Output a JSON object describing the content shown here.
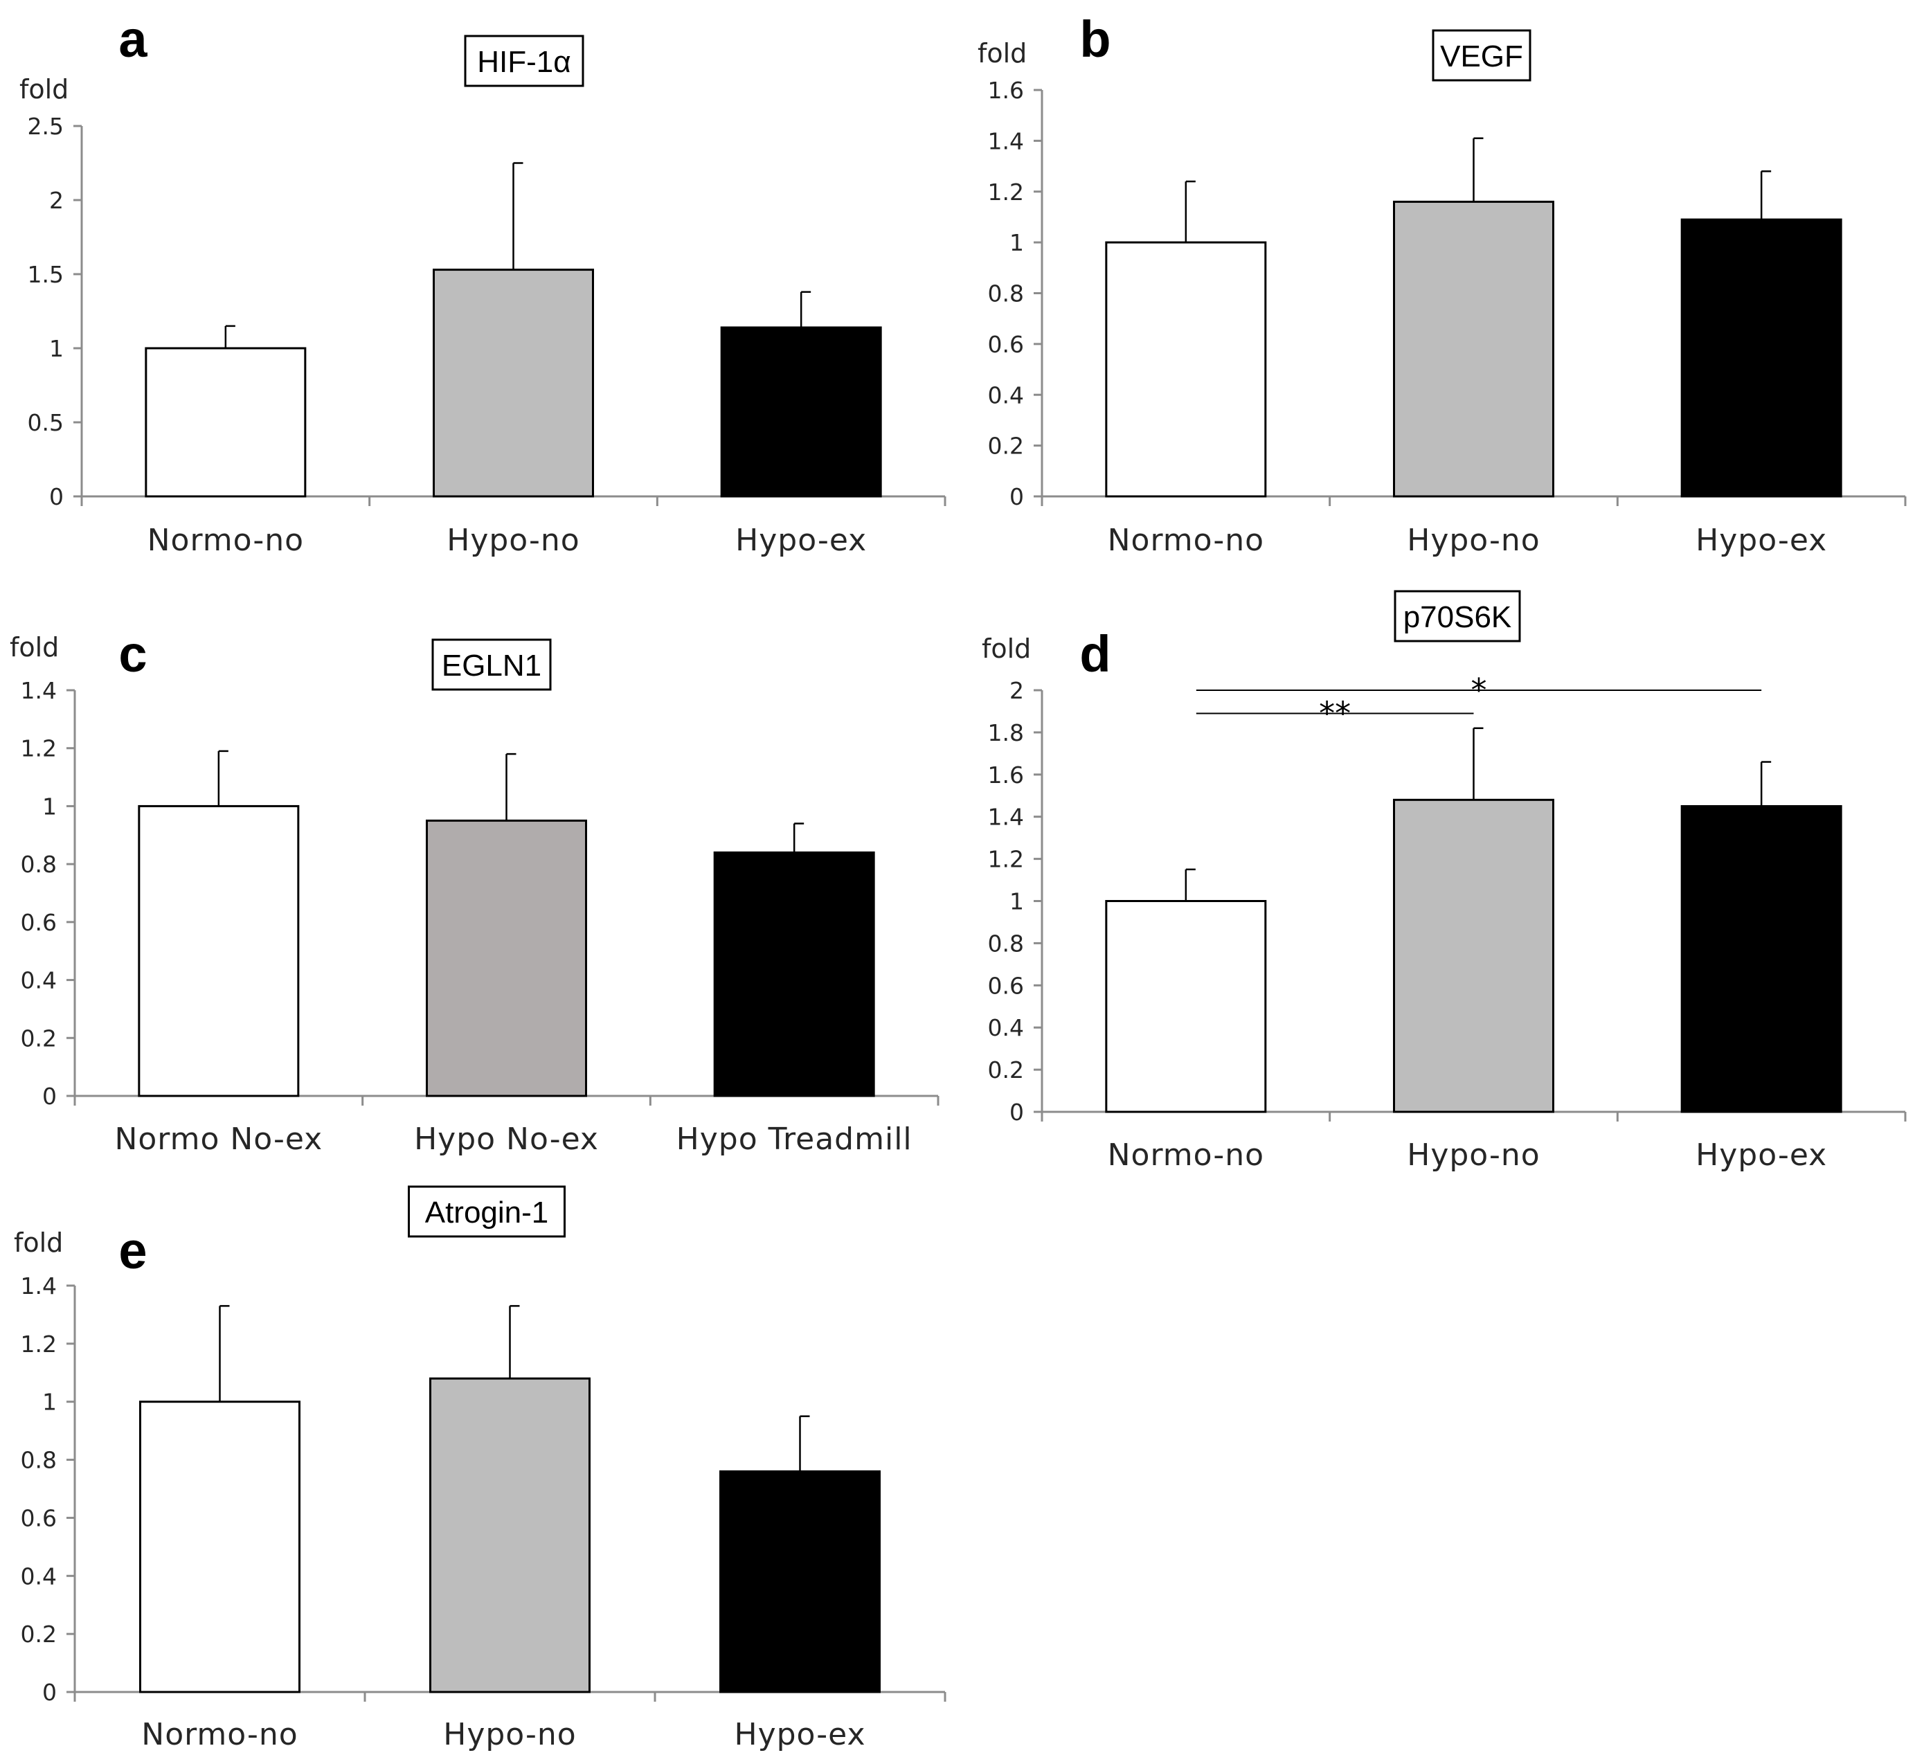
{
  "figure": {
    "panels": [
      {
        "letter": "a",
        "title": "HIF-1α"
      },
      {
        "letter": "b",
        "title": "VEGF"
      },
      {
        "letter": "c",
        "title": "EGLN1"
      },
      {
        "letter": "d",
        "title": "p70S6K"
      },
      {
        "letter": "e",
        "title": "Atrogin-1"
      }
    ]
  },
  "colors": {
    "normo": "#ffffff",
    "hypo_no": "#bdbdbd",
    "hypo_no_c": "#b0acac",
    "hypo_ex": "#000000",
    "axis": "#8c8c8c"
  },
  "chart_data": [
    {
      "type": "bar",
      "panel": "a",
      "title": "HIF-1α",
      "ylabel": "fold",
      "ylim": [
        0,
        2.5
      ],
      "yticks": [
        "0",
        "0.5",
        "1",
        "1.5",
        "2",
        "2.5"
      ],
      "categories": [
        "Normo-no",
        "Hypo-no",
        "Hypo-ex"
      ],
      "values": [
        1.0,
        1.53,
        1.14
      ],
      "errors": [
        0.15,
        0.72,
        0.24
      ],
      "significance": []
    },
    {
      "type": "bar",
      "panel": "b",
      "title": "VEGF",
      "ylabel": "fold",
      "ylim": [
        0,
        1.6
      ],
      "yticks": [
        "0",
        "0.2",
        "0.4",
        "0.6",
        "0.8",
        "1",
        "1.2",
        "1.4",
        "1.6"
      ],
      "categories": [
        "Normo-no",
        "Hypo-no",
        "Hypo-ex"
      ],
      "values": [
        1.0,
        1.16,
        1.09
      ],
      "errors": [
        0.24,
        0.25,
        0.19
      ],
      "significance": []
    },
    {
      "type": "bar",
      "panel": "c",
      "title": "EGLN1",
      "ylabel": "fold",
      "ylim": [
        0,
        1.4
      ],
      "yticks": [
        "0",
        "0.2",
        "0.4",
        "0.6",
        "0.8",
        "1",
        "1.2",
        "1.4"
      ],
      "categories": [
        "Normo No-ex",
        "Hypo No-ex",
        "Hypo Treadmill"
      ],
      "values": [
        1.0,
        0.95,
        0.84
      ],
      "errors": [
        0.19,
        0.23,
        0.1
      ],
      "significance": []
    },
    {
      "type": "bar",
      "panel": "d",
      "title": "p70S6K",
      "ylabel": "fold",
      "ylim": [
        0,
        2
      ],
      "yticks": [
        "0",
        "0.2",
        "0.4",
        "0.6",
        "0.8",
        "1",
        "1.2",
        "1.4",
        "1.6",
        "1.8",
        "2"
      ],
      "categories": [
        "Normo-no",
        "Hypo-no",
        "Hypo-ex"
      ],
      "values": [
        1.0,
        1.48,
        1.45
      ],
      "errors": [
        0.15,
        0.34,
        0.21
      ],
      "significance": [
        {
          "from": 0,
          "to": 1,
          "label": "**",
          "level": 1.89
        },
        {
          "from": 0,
          "to": 2,
          "label": "*",
          "level": 2.0
        }
      ]
    },
    {
      "type": "bar",
      "panel": "e",
      "title": "Atrogin-1",
      "ylabel": "fold",
      "ylim": [
        0,
        1.4
      ],
      "yticks": [
        "0",
        "0.2",
        "0.4",
        "0.6",
        "0.8",
        "1",
        "1.2",
        "1.4"
      ],
      "categories": [
        "Normo-no",
        "Hypo-no",
        "Hypo-ex"
      ],
      "values": [
        1.0,
        1.08,
        0.76
      ],
      "errors": [
        0.33,
        0.25,
        0.19
      ],
      "significance": []
    }
  ]
}
